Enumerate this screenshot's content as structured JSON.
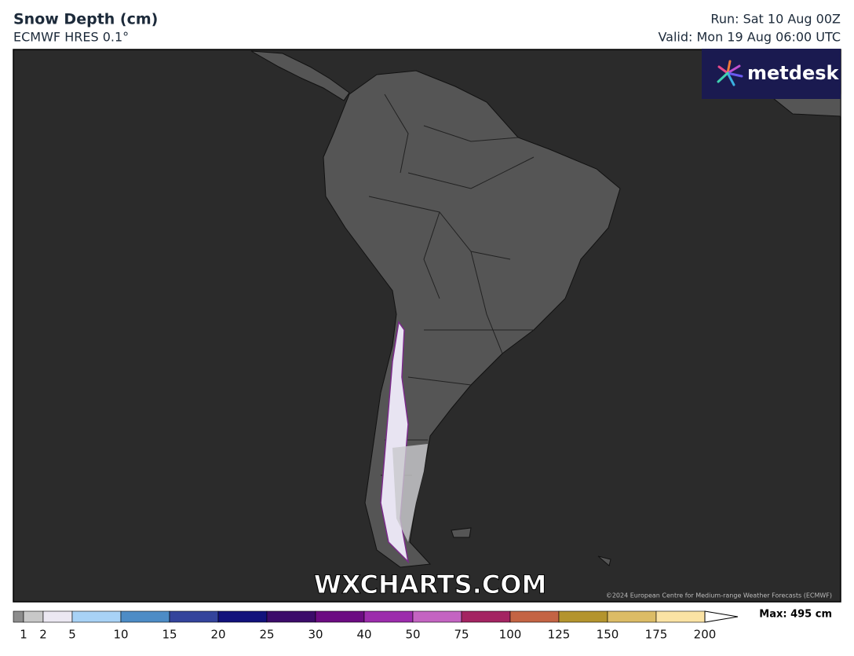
{
  "header": {
    "title": "Snow Depth (cm)",
    "subtitle": "ECMWF HRES 0.1°",
    "run": "Run: Sat 10 Aug 00Z",
    "valid": "Valid: Mon 19 Aug 06:00 UTC"
  },
  "map": {
    "logo": "metdesk",
    "watermark": "WXCHARTS.COM",
    "copyright": "©2024 European Centre for Medium-range Weather Forecasts (ECMWF)"
  },
  "legend": {
    "levels": [
      1,
      2,
      5,
      10,
      15,
      20,
      25,
      30,
      40,
      50,
      75,
      100,
      125,
      150,
      175,
      200
    ],
    "colors": [
      "#8c8c8c",
      "#c8c8c8",
      "#ece8f2",
      "#a8d2f6",
      "#4d8cc6",
      "#34449c",
      "#12127c",
      "#3c0c6a",
      "#6c0c82",
      "#9c2cac",
      "#c464c2",
      "#a42462",
      "#c46444",
      "#b4942e",
      "#dcbc66",
      "#fbe3a4"
    ],
    "max": "Max: 495 cm"
  }
}
